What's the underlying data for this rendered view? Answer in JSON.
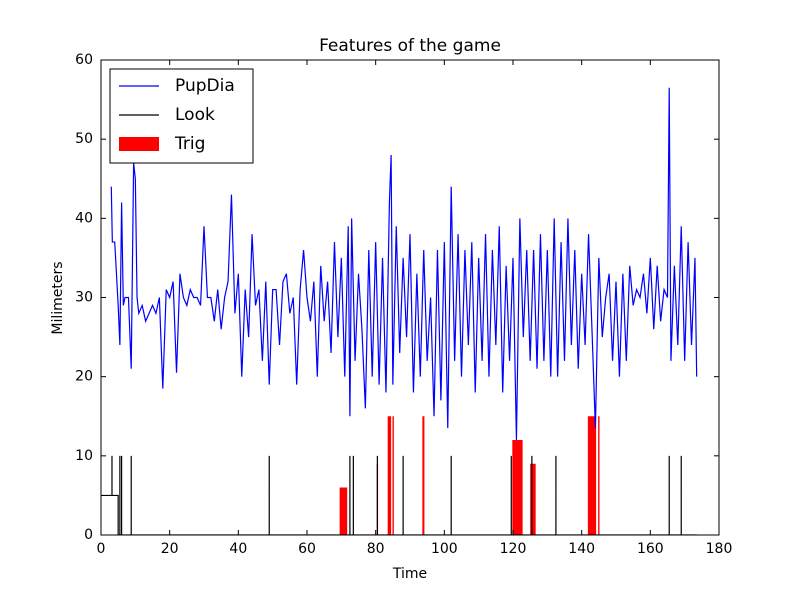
{
  "chart_data": {
    "type": "line",
    "title": "Features of the game",
    "xlabel": "Time",
    "ylabel": "Milimeters",
    "xlim": [
      0,
      180
    ],
    "ylim": [
      0,
      60
    ],
    "xticks": [
      0,
      20,
      40,
      60,
      80,
      100,
      120,
      140,
      160,
      180
    ],
    "yticks": [
      0,
      10,
      20,
      30,
      40,
      50,
      60
    ],
    "legend": "upper left",
    "series": [
      {
        "name": "PupDia",
        "color": "#0000ff",
        "kind": "line",
        "x": [
          3,
          3.3,
          4,
          5,
          5.5,
          6,
          6.5,
          7,
          8,
          8.8,
          9.5,
          10,
          10.5,
          11,
          12,
          13,
          14,
          15,
          16,
          17,
          18,
          19,
          20,
          21,
          22,
          23,
          24,
          25,
          26,
          27,
          28,
          29,
          30,
          31,
          32,
          33,
          34,
          35,
          36,
          37,
          38,
          39,
          40,
          41,
          42,
          43,
          44,
          45,
          46,
          47,
          48,
          49,
          50,
          51,
          52,
          53,
          54,
          55,
          56,
          57,
          58,
          59,
          60,
          61,
          62,
          63,
          64,
          65,
          66,
          67,
          68,
          69,
          70,
          71,
          72,
          72.5,
          73,
          74,
          75,
          76,
          77,
          78,
          79,
          80,
          81,
          82,
          83,
          84,
          84.5,
          85,
          86,
          87,
          88,
          89,
          90,
          91,
          92,
          93,
          94,
          95,
          96,
          97,
          98,
          99,
          100,
          101,
          102,
          103,
          104,
          105,
          106,
          107,
          108,
          109,
          110,
          111,
          112,
          113,
          114,
          115,
          116,
          117,
          118,
          119,
          120,
          121,
          122,
          123,
          124,
          125,
          126,
          127,
          128,
          129,
          130,
          131,
          132,
          133,
          134,
          135,
          136,
          137,
          138,
          139,
          140,
          141,
          142,
          143,
          144,
          145,
          146,
          147,
          148,
          149,
          150,
          151,
          152,
          153,
          154,
          155,
          156,
          157,
          158,
          159,
          160,
          161,
          162,
          163,
          164,
          165,
          165.5,
          166,
          167,
          168,
          169,
          170,
          171,
          172,
          173,
          173.5
        ],
        "values": [
          44,
          37,
          37,
          29,
          24,
          42,
          29,
          30,
          30,
          21,
          47,
          45,
          30,
          28,
          29,
          27,
          28,
          29,
          28,
          30,
          18.5,
          31,
          30,
          32,
          20.5,
          33,
          30,
          29,
          31,
          30,
          30,
          29,
          39,
          30,
          30,
          27,
          31,
          26,
          30,
          32,
          43,
          28,
          33,
          20,
          31,
          25,
          38,
          29,
          31,
          22,
          32,
          19,
          31,
          31,
          24,
          32,
          33,
          28,
          30,
          19,
          31,
          36,
          30,
          27,
          32,
          20,
          34,
          27,
          32,
          23,
          37,
          25,
          35,
          20,
          39,
          15,
          40,
          22,
          33,
          26,
          16,
          36,
          20,
          37,
          19,
          35,
          18,
          42,
          48,
          19,
          39,
          23,
          35,
          25,
          38,
          18,
          33,
          20,
          36,
          22,
          30,
          15,
          36,
          17,
          37,
          13.5,
          44,
          22,
          38,
          20,
          36,
          24,
          37,
          18,
          35,
          22,
          38,
          20,
          36,
          24,
          39,
          18,
          34,
          22,
          35,
          12,
          40,
          25,
          36,
          22,
          36,
          21,
          38,
          22,
          36,
          20,
          40,
          20,
          37,
          22,
          40,
          24,
          36,
          21,
          33,
          24,
          38,
          26,
          13.5,
          35,
          25,
          30,
          33,
          22,
          32,
          20,
          33,
          22,
          34,
          29,
          31,
          30,
          33,
          28,
          35,
          26,
          34,
          27,
          31,
          30,
          56.5,
          22,
          34,
          24,
          39,
          22,
          37,
          24,
          35,
          20
        ]
      },
      {
        "name": "Look",
        "color": "#000000",
        "kind": "line",
        "x": [
          0,
          3.2,
          3.2,
          3.2,
          5,
          5,
          5.5,
          5.5,
          5.5,
          6,
          6,
          6,
          8.8,
          8.8,
          8.8,
          49,
          49,
          49,
          72.5,
          72.5,
          72.5,
          73.5,
          73.5,
          73.5,
          80.5,
          80.5,
          80.5,
          88,
          88,
          88,
          102,
          102,
          102,
          119.5,
          119.5,
          119.5,
          125.5,
          125.5,
          125.5,
          132.5,
          132.5,
          132.5,
          165.5,
          165.5,
          165.5,
          169,
          169,
          169,
          173.5
        ],
        "values": [
          5,
          5,
          10,
          5,
          5,
          0,
          0,
          10,
          0,
          0,
          10,
          0,
          0,
          10,
          0,
          0,
          10,
          0,
          0,
          10,
          0,
          0,
          10,
          0,
          0,
          10,
          0,
          0,
          10,
          0,
          0,
          10,
          0,
          0,
          10,
          0,
          0,
          10,
          0,
          0,
          10,
          0,
          0,
          10,
          0,
          0,
          10,
          0,
          0
        ]
      },
      {
        "name": "Trig",
        "color": "#ff0000",
        "kind": "bar",
        "x": [
          69.5,
          80.3,
          83.5,
          84.9,
          93.6,
          119.8,
          125,
          141.8,
          144.8
        ],
        "width": [
          2.2,
          0.4,
          1,
          0.4,
          0.6,
          3,
          1.6,
          2.4,
          0.4
        ],
        "values": [
          6,
          9,
          15,
          15,
          15,
          12,
          9,
          15,
          15
        ]
      }
    ]
  }
}
